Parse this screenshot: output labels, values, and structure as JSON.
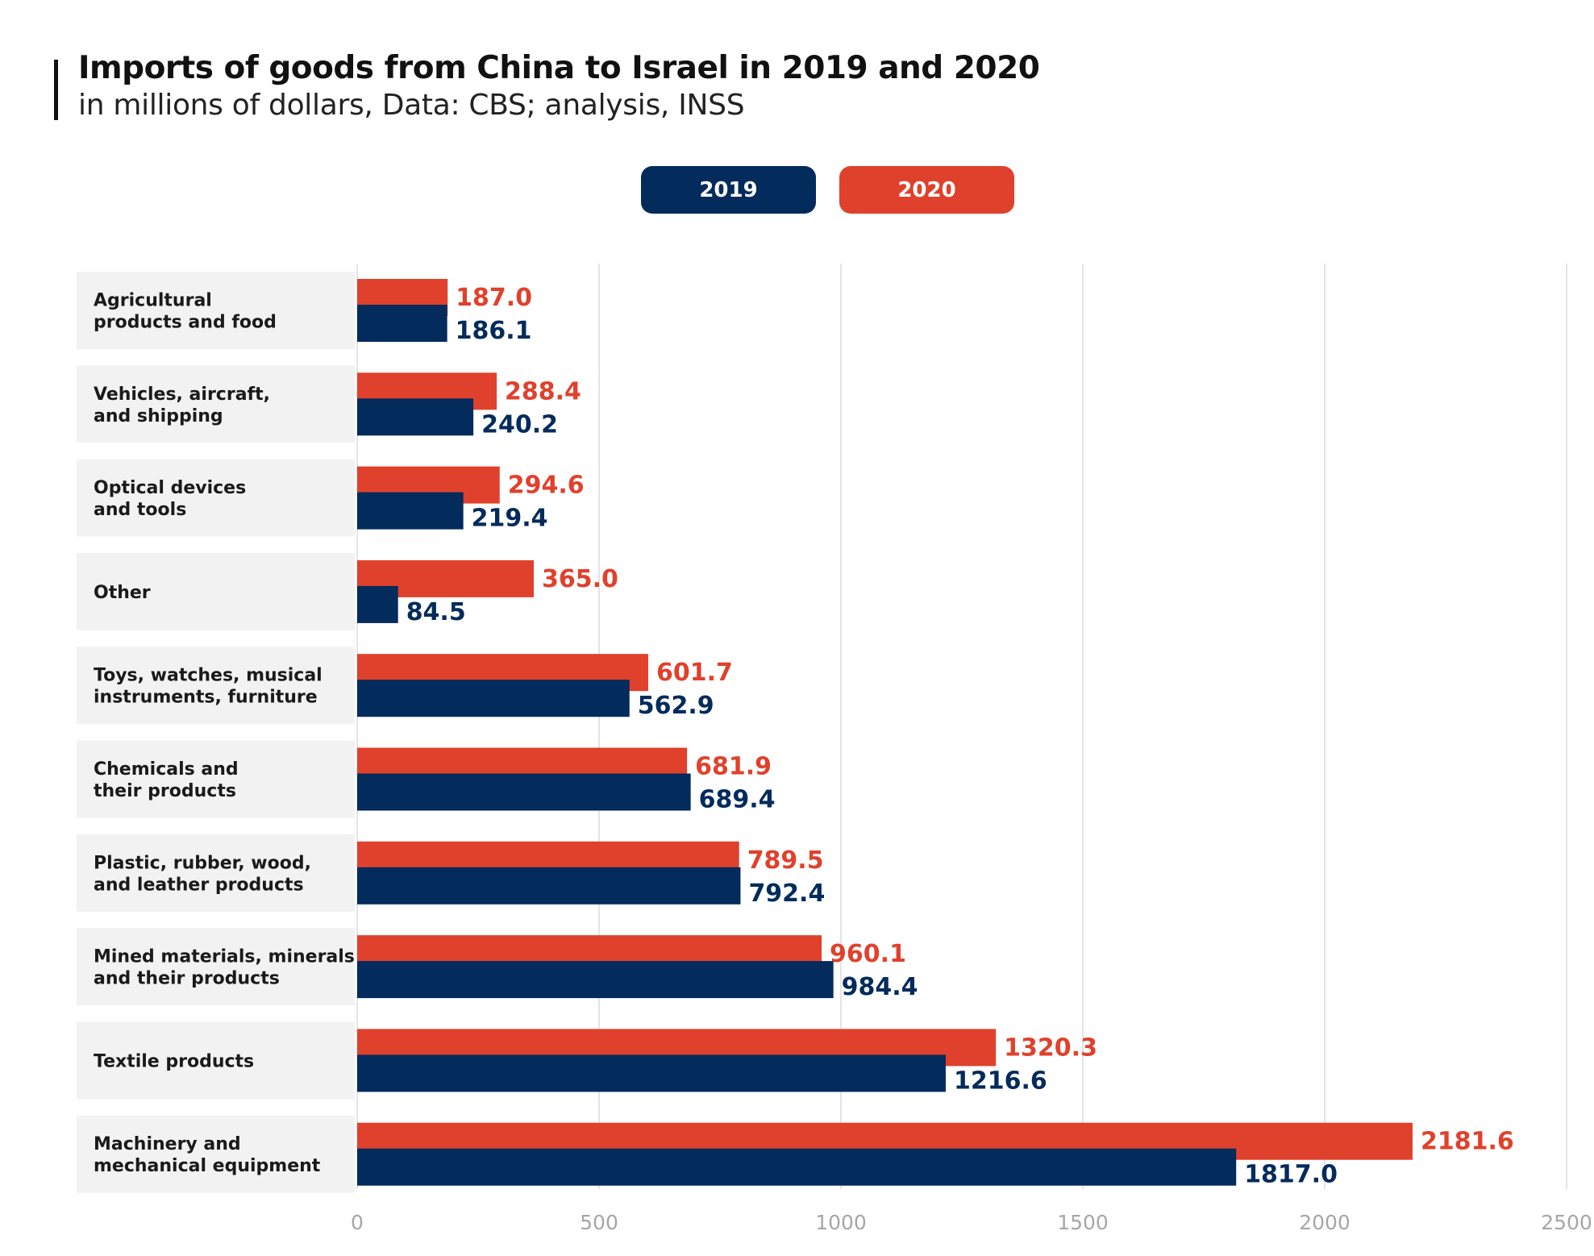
{
  "title": "Imports of goods from China to Israel in 2019 and 2020",
  "subtitle": "in millions of dollars, Data: CBS; analysis, INSS",
  "legend": {
    "items": [
      {
        "label": "2019",
        "color": "#032b5b"
      },
      {
        "label": "2020",
        "color": "#e0412c"
      }
    ]
  },
  "colors": {
    "series_2019": "#032b5b",
    "series_2020": "#e0412c",
    "category_band": "#f2f2f2",
    "gridline": "#dcdcdc",
    "tick_label": "#a6a6a6"
  },
  "chart_data": {
    "type": "bar",
    "orientation": "horizontal",
    "categories": [
      [
        "Agricultural",
        "products and food"
      ],
      [
        "Vehicles, aircraft,",
        "and shipping"
      ],
      [
        "Optical devices",
        "and tools"
      ],
      [
        "Other"
      ],
      [
        "Toys, watches, musical",
        "instruments, furniture"
      ],
      [
        "Chemicals and",
        "their products"
      ],
      [
        "Plastic, rubber, wood,",
        "and leather products"
      ],
      [
        "Mined materials, minerals",
        "and their products"
      ],
      [
        "Textile products"
      ],
      [
        "Machinery and",
        "mechanical equipment"
      ]
    ],
    "series": [
      {
        "name": "2020",
        "color": "#e0412c",
        "values": [
          187.0,
          288.4,
          294.6,
          365.0,
          601.7,
          681.9,
          789.5,
          960.1,
          1320.3,
          2181.6
        ],
        "labels": [
          "187.0",
          "288.4",
          "294.6",
          "365.0",
          "601.7",
          "681.9",
          "789.5",
          "960.1",
          "1320.3",
          "2181.6"
        ]
      },
      {
        "name": "2019",
        "color": "#032b5b",
        "values": [
          186.1,
          240.2,
          219.4,
          84.5,
          562.9,
          689.4,
          792.4,
          984.4,
          1216.6,
          1817.0
        ],
        "labels": [
          "186.1",
          "240.2",
          "219.4",
          "84.5",
          "562.9",
          "689.4",
          "792.4",
          "984.4",
          "1216.6",
          "1817.0"
        ]
      }
    ],
    "xlim": [
      0,
      2500
    ],
    "xticks": [
      0,
      500,
      1000,
      1500,
      2000,
      2500
    ],
    "xtick_labels": [
      "0",
      "500",
      "1000",
      "1500",
      "2000",
      "2500"
    ],
    "grid": true,
    "legend_position": "top-center"
  }
}
